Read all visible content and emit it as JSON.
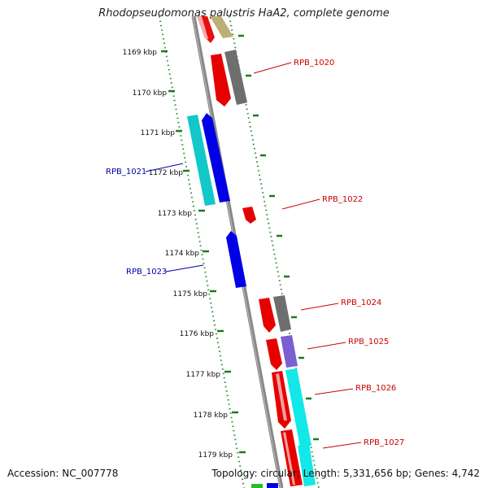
{
  "title": "Rhodopseudomonas palustris HaA2, complete genome",
  "accession": "Accession: NC_007778",
  "summary": "Topology: circular; Length: 5,331,656 bp; Genes: 4,742",
  "colors": {
    "backbone": "#888888",
    "ruler_dots": "#2e8b2e",
    "forward_label": "#cc0000",
    "reverse_label": "#0000aa"
  },
  "ruler": {
    "ticks": [
      "1169 kbp",
      "1170 kbp",
      "1171 kbp",
      "1172 kbp",
      "1173 kbp",
      "1174 kbp",
      "1175 kbp",
      "1176 kbp",
      "1177 kbp",
      "1178 kbp",
      "1179 kbp"
    ]
  },
  "gene_labels": [
    {
      "text": "RPB_1020",
      "strand": "forward"
    },
    {
      "text": "RPB_1021",
      "strand": "reverse"
    },
    {
      "text": "RPB_1022",
      "strand": "forward"
    },
    {
      "text": "RPB_1023",
      "strand": "reverse"
    },
    {
      "text": "RPB_1024",
      "strand": "forward"
    },
    {
      "text": "RPB_1025",
      "strand": "forward"
    },
    {
      "text": "RPB_1026",
      "strand": "forward"
    },
    {
      "text": "RPB_1027",
      "strand": "forward"
    }
  ]
}
